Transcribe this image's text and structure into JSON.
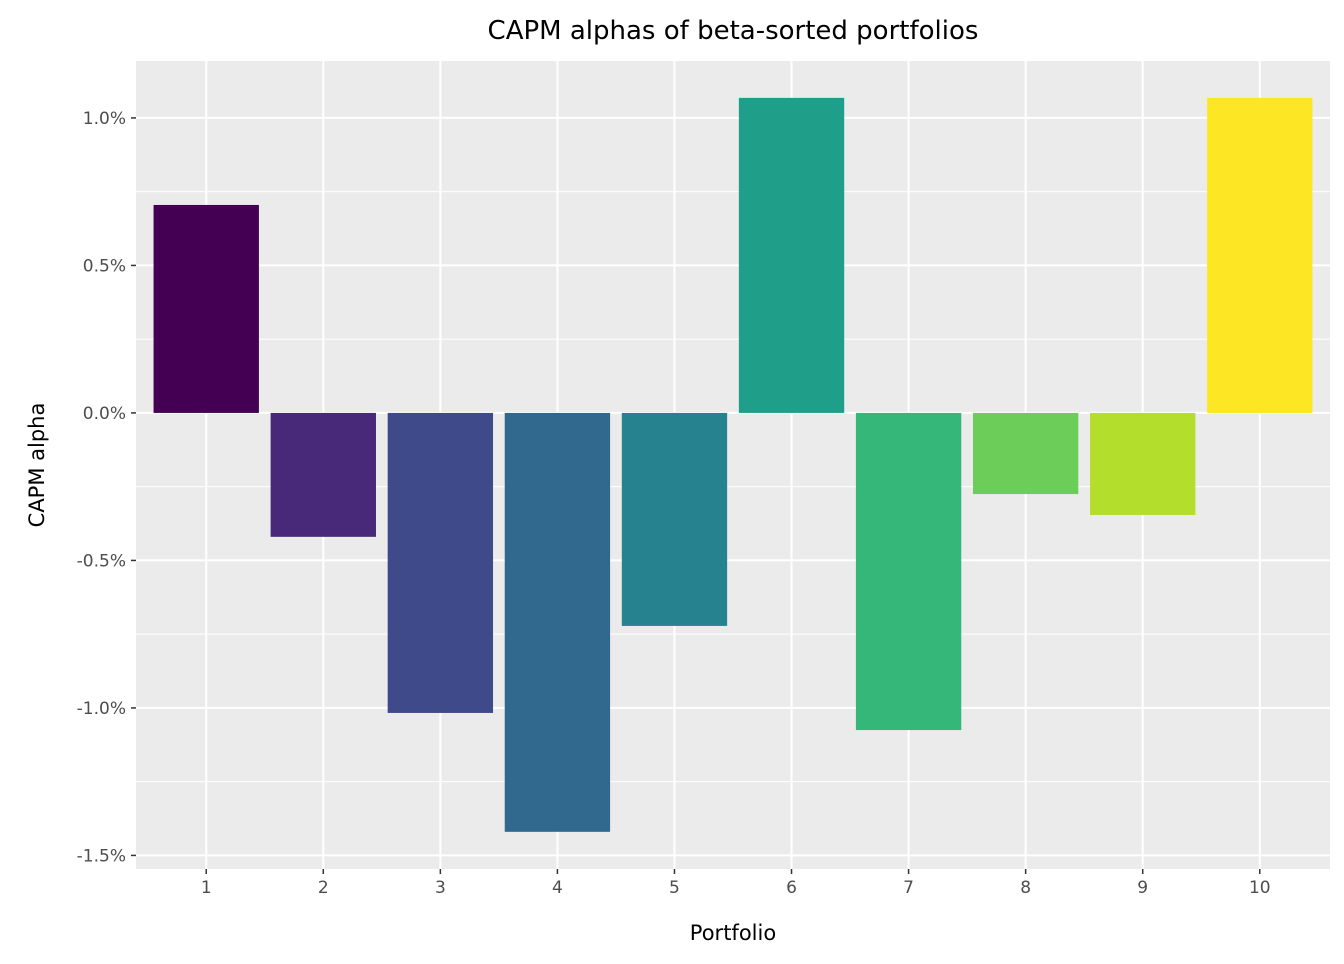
{
  "chart_data": {
    "type": "bar",
    "title": "CAPM alphas of beta-sorted portfolios",
    "xlabel": "Portfolio",
    "ylabel": "CAPM alpha",
    "categories": [
      "1",
      "2",
      "3",
      "4",
      "5",
      "6",
      "7",
      "8",
      "9",
      "10"
    ],
    "values": [
      0.705,
      -0.42,
      -1.017,
      -1.42,
      -0.722,
      1.068,
      -1.075,
      -0.275,
      -0.346,
      1.068
    ],
    "value_unit": "%",
    "colors": [
      "#440154",
      "#482878",
      "#3E4A89",
      "#31688E",
      "#26828E",
      "#1F9E89",
      "#35B779",
      "#6DCD59",
      "#B4DE2C",
      "#FDE725"
    ],
    "ylim": [
      -1.546,
      1.193
    ],
    "yticks": [
      -1.5,
      -1.0,
      -0.5,
      0.0,
      0.5,
      1.0
    ],
    "ytick_labels": [
      "-1.5%",
      "-1.0%",
      "-0.5%",
      "0.0%",
      "0.5%",
      "1.0%"
    ],
    "grid": true,
    "panel_background": "#EBEBEB"
  }
}
